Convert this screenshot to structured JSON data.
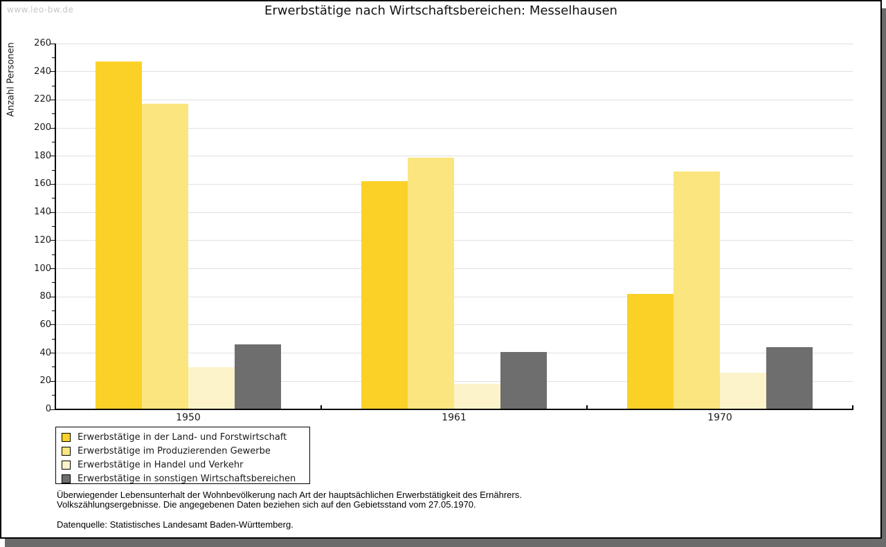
{
  "watermark": "www.leo-bw.de",
  "title": "Erwerbstätige nach Wirtschaftsbereichen: Messelhausen",
  "chart_data": {
    "type": "bar",
    "title": "Erwerbstätige nach Wirtschaftsbereichen: Messelhausen",
    "categories": [
      "1950",
      "1961",
      "1970"
    ],
    "series": [
      {
        "name": "Erwerbstätige in der Land- und Forstwirtschaft",
        "color": "#FBD127",
        "values": [
          247,
          162,
          82
        ]
      },
      {
        "name": "Erwerbstätige im Produzierenden Gewerbe",
        "color": "#FAE57E",
        "values": [
          217,
          179,
          169
        ]
      },
      {
        "name": "Erwerbstätige in Handel und Verkehr",
        "color": "#FCF3CA",
        "values": [
          30,
          18,
          26
        ]
      },
      {
        "name": "Erwerbstätige in sonstigen Wirtschaftsbereichen",
        "color": "#6E6E6E",
        "values": [
          46,
          41,
          44
        ]
      }
    ],
    "ylabel": "Anzahl Personen",
    "xlabel": "",
    "ylim": [
      0,
      260
    ],
    "ytick_step": 20,
    "yminor_step": 10,
    "grid": true,
    "legend_position": "bottom-left"
  },
  "footnotes": {
    "line1": "Überwiegender Lebensunterhalt der Wohnbevölkerung nach Art der hauptsächlichen Erwerbstätigkeit des Ernährers.",
    "line2": "Volkszählungsergebnisse. Die angegebenen Daten beziehen sich auf den Gebietsstand vom 27.05.1970.",
    "source": "Datenquelle: Statistisches Landesamt Baden-Württemberg."
  },
  "colors": {
    "grid": "#E0E0E0",
    "axis": "#000000",
    "text": "#1A1A1A",
    "watermark": "#C6C6C6",
    "page_shadow": "#6B6B6B"
  }
}
